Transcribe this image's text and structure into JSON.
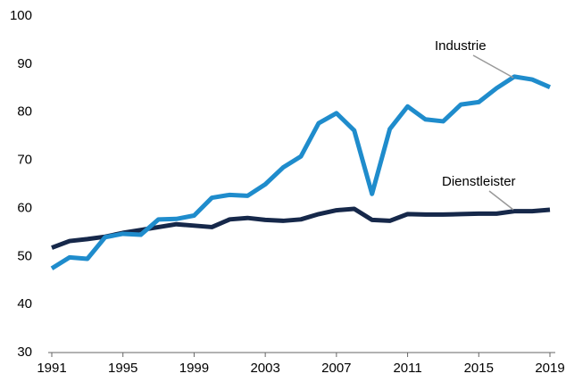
{
  "chart_data": {
    "type": "line",
    "x": [
      1991,
      1992,
      1993,
      1994,
      1995,
      1996,
      1997,
      1998,
      1999,
      2000,
      2001,
      2002,
      2003,
      2004,
      2005,
      2006,
      2007,
      2008,
      2009,
      2010,
      2011,
      2012,
      2013,
      2014,
      2015,
      2016,
      2017,
      2018,
      2019
    ],
    "series": [
      {
        "name": "Industrie",
        "color": "#1f8ccc",
        "values": [
          47.5,
          49.8,
          49.5,
          54,
          54.7,
          54.5,
          57.7,
          57.8,
          58.5,
          62.2,
          62.8,
          62.6,
          65,
          68.5,
          70.8,
          77.7,
          79.8,
          76.2,
          63,
          76.5,
          81.2,
          78.5,
          78.1,
          81.6,
          82.1,
          85,
          87.4,
          86.8,
          85.2
        ]
      },
      {
        "name": "Dienstleister",
        "color": "#16284a",
        "values": [
          51.8,
          53.2,
          53.6,
          54.1,
          54.9,
          55.5,
          56.1,
          56.7,
          56.4,
          56.1,
          57.7,
          58,
          57.6,
          57.4,
          57.7,
          58.8,
          59.6,
          59.9,
          57.6,
          57.4,
          58.8,
          58.7,
          58.7,
          58.8,
          58.9,
          58.9,
          59.4,
          59.4,
          59.7
        ]
      }
    ],
    "xlim": [
      1991,
      2019
    ],
    "xticks": [
      1991,
      1995,
      1999,
      2003,
      2007,
      2011,
      2015,
      2019
    ],
    "ylim": [
      30,
      100
    ],
    "yticks": [
      30,
      40,
      50,
      60,
      70,
      80,
      90,
      100
    ],
    "grid": false
  }
}
